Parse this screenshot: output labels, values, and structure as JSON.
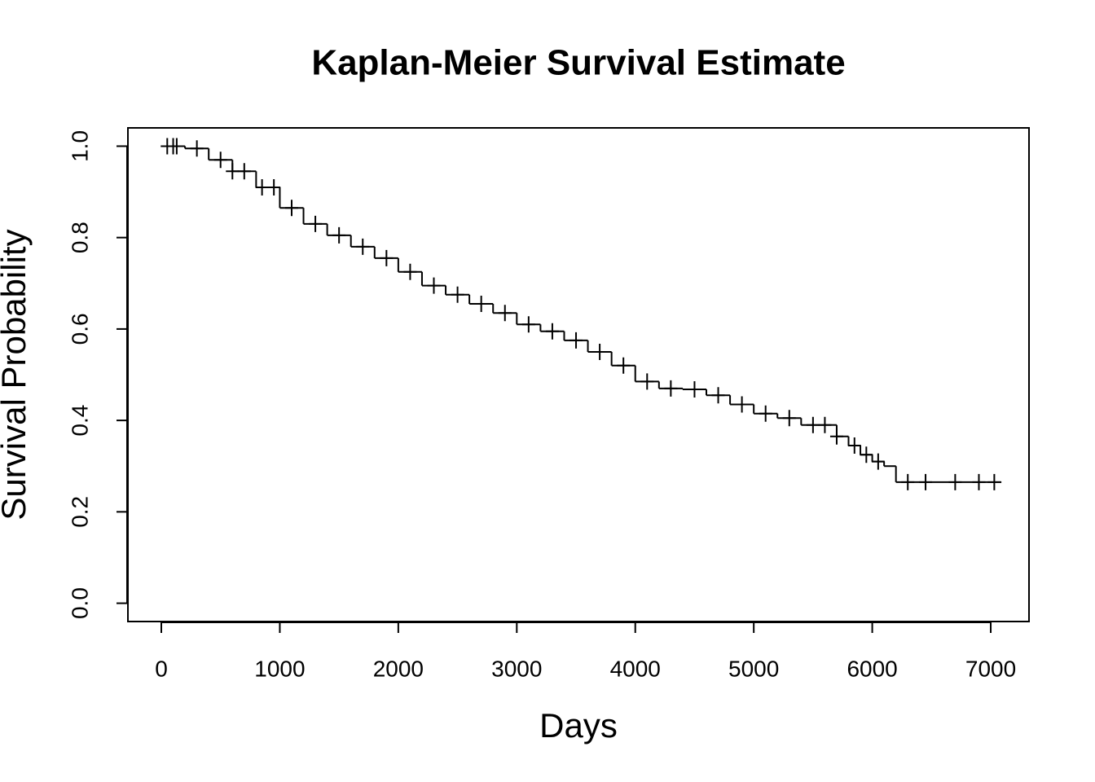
{
  "chart_data": {
    "type": "step",
    "title": "Kaplan-Meier Survival Estimate",
    "x_label": "Days",
    "y_label": "Survival Probability",
    "color": "#000000",
    "x": [
      0,
      200,
      400,
      600,
      800,
      1000,
      1200,
      1400,
      1600,
      1800,
      2000,
      2200,
      2400,
      2600,
      2800,
      3000,
      3200,
      3400,
      3600,
      3800,
      4000,
      4200,
      4400,
      4600,
      4800,
      5000,
      5200,
      5400,
      5600,
      5700,
      5800,
      5900,
      6000,
      6100,
      6200,
      7090
    ],
    "values": [
      1.0,
      0.995,
      0.97,
      0.945,
      0.91,
      0.865,
      0.83,
      0.805,
      0.78,
      0.755,
      0.725,
      0.695,
      0.675,
      0.655,
      0.635,
      0.61,
      0.595,
      0.575,
      0.55,
      0.52,
      0.485,
      0.47,
      0.468,
      0.455,
      0.435,
      0.415,
      0.405,
      0.39,
      0.39,
      0.365,
      0.345,
      0.325,
      0.31,
      0.3,
      0.265,
      0.265
    ],
    "censored": {
      "x": [
        50,
        100,
        130,
        300,
        500,
        600,
        700,
        850,
        950,
        1100,
        1300,
        1500,
        1700,
        1900,
        2100,
        2300,
        2500,
        2700,
        2900,
        3100,
        3300,
        3500,
        3700,
        3900,
        4100,
        4300,
        4500,
        4700,
        4900,
        5100,
        5300,
        5500,
        5600,
        5700,
        5850,
        5950,
        6050,
        6300,
        6450,
        6700,
        6900,
        7030
      ],
      "values": [
        1.0,
        1.0,
        1.0,
        0.995,
        0.97,
        0.945,
        0.945,
        0.91,
        0.91,
        0.865,
        0.83,
        0.805,
        0.78,
        0.755,
        0.725,
        0.695,
        0.675,
        0.655,
        0.635,
        0.61,
        0.595,
        0.575,
        0.55,
        0.52,
        0.485,
        0.47,
        0.468,
        0.455,
        0.435,
        0.415,
        0.405,
        0.39,
        0.39,
        0.365,
        0.345,
        0.325,
        0.31,
        0.265,
        0.265,
        0.265,
        0.265,
        0.265
      ]
    },
    "xlim": [
      -282,
      7323
    ],
    "ylim": [
      -0.04,
      1.04
    ],
    "xticks": [
      0,
      1000,
      2000,
      3000,
      4000,
      5000,
      6000,
      7000
    ],
    "yticks": [
      {
        "value": 0,
        "label": "0.0"
      },
      {
        "value": 0.2,
        "label": "0.2"
      },
      {
        "value": 0.4,
        "label": "0.4"
      },
      {
        "value": 0.6,
        "label": "0.6"
      },
      {
        "value": 0.8,
        "label": "0.8"
      },
      {
        "value": 1,
        "label": "1.0"
      }
    ]
  }
}
